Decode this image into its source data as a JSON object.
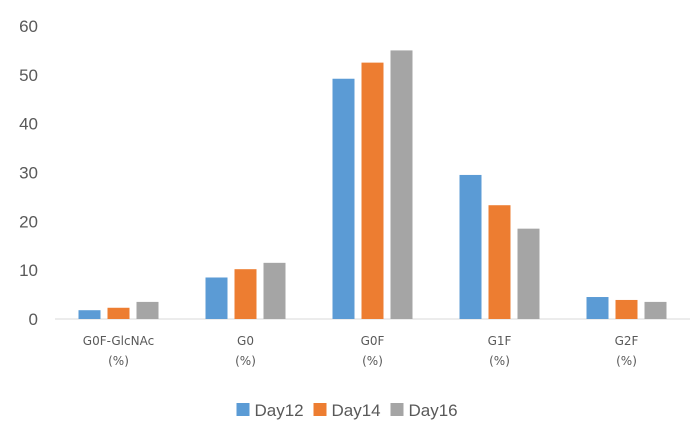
{
  "chart_data": {
    "type": "bar",
    "title": "",
    "xlabel": "",
    "ylabel": "",
    "categories": [
      [
        "G0F-GlcNAc",
        "(%)"
      ],
      [
        "G0",
        "(%)"
      ],
      [
        "G0F",
        "(%)"
      ],
      [
        "G1F",
        "(%)"
      ],
      [
        "G2F",
        "(%)"
      ]
    ],
    "series": [
      {
        "name": "Day12",
        "color": "#5b9bd5",
        "values": [
          1.8,
          8.5,
          49.2,
          29.5,
          4.5
        ]
      },
      {
        "name": "Day14",
        "color": "#ed7d31",
        "values": [
          2.3,
          10.2,
          52.5,
          23.3,
          3.9
        ]
      },
      {
        "name": "Day16",
        "color": "#a5a5a5",
        "values": [
          3.5,
          11.5,
          55.0,
          18.5,
          3.5
        ]
      }
    ],
    "ylim": [
      0,
      60
    ],
    "yticks": [
      0,
      10,
      20,
      30,
      40,
      50,
      60
    ],
    "grid": false,
    "legend_position": "bottom"
  }
}
